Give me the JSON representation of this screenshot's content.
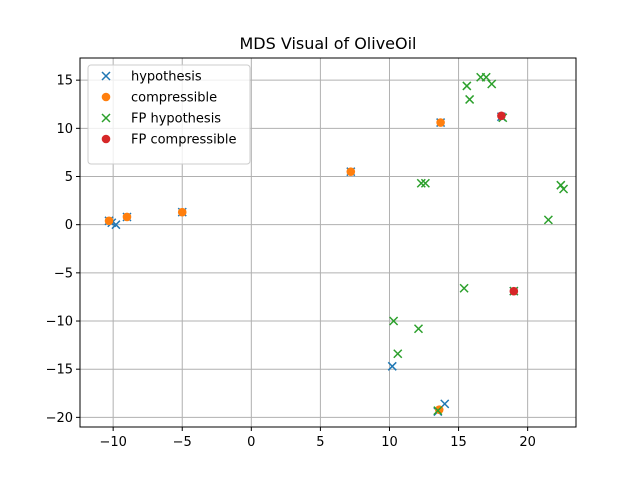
{
  "chart_data": {
    "type": "scatter",
    "title": "MDS Visual of OliveOil",
    "xlabel": "",
    "ylabel": "",
    "xlim": [
      -12.4,
      23.5
    ],
    "ylim": [
      -21.0,
      17.3
    ],
    "xticks": [
      -10,
      -5,
      0,
      5,
      10,
      15,
      20
    ],
    "yticks": [
      -20,
      -15,
      -10,
      -5,
      0,
      5,
      10,
      15
    ],
    "grid": true,
    "legend_position": "top-left",
    "series": [
      {
        "name": "hypothesis",
        "marker": "x",
        "color": "#1f77b4",
        "points": [
          [
            -10.3,
            0.4
          ],
          [
            -10.1,
            0.2
          ],
          [
            -9.8,
            0.0
          ],
          [
            -9.0,
            0.8
          ],
          [
            -5.0,
            1.3
          ],
          [
            7.2,
            5.5
          ],
          [
            13.7,
            10.6
          ],
          [
            18.1,
            11.2
          ],
          [
            19.0,
            -6.9
          ],
          [
            10.2,
            -14.7
          ],
          [
            13.5,
            -19.4
          ],
          [
            14.0,
            -18.6
          ]
        ]
      },
      {
        "name": "compressible",
        "marker": "o",
        "color": "#ff7f0e",
        "points": [
          [
            -10.3,
            0.4
          ],
          [
            -9.0,
            0.8
          ],
          [
            -5.0,
            1.3
          ],
          [
            7.2,
            5.5
          ],
          [
            13.7,
            10.6
          ],
          [
            13.6,
            -19.2
          ]
        ]
      },
      {
        "name": "FP hypothesis",
        "marker": "x",
        "color": "#2ca02c",
        "points": [
          [
            16.6,
            15.3
          ],
          [
            17.0,
            15.3
          ],
          [
            15.6,
            14.4
          ],
          [
            17.4,
            14.6
          ],
          [
            15.8,
            13.0
          ],
          [
            18.2,
            11.1
          ],
          [
            12.3,
            4.3
          ],
          [
            12.6,
            4.3
          ],
          [
            22.4,
            4.1
          ],
          [
            22.6,
            3.7
          ],
          [
            21.5,
            0.5
          ],
          [
            15.4,
            -6.6
          ],
          [
            19.0,
            -6.9
          ],
          [
            10.3,
            -10.0
          ],
          [
            12.1,
            -10.8
          ],
          [
            10.6,
            -13.4
          ],
          [
            13.5,
            -19.3
          ]
        ]
      },
      {
        "name": "FP compressible",
        "marker": "o",
        "color": "#d62728",
        "points": [
          [
            18.1,
            11.3
          ],
          [
            19.0,
            -6.9
          ]
        ]
      }
    ]
  }
}
